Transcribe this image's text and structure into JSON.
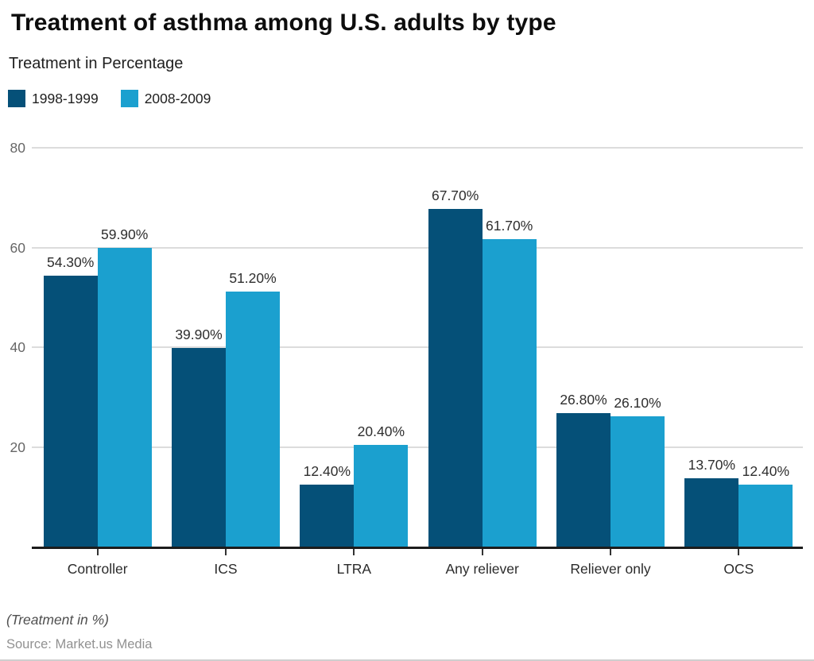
{
  "header": {
    "title": "Treatment of asthma among U.S. adults by type",
    "subtitle": "Treatment in Percentage"
  },
  "chart_data": {
    "type": "bar",
    "categories": [
      "Controller",
      "ICS",
      "LTRA",
      "Any reliever",
      "Reliever only",
      "OCS"
    ],
    "series": [
      {
        "name": "1998-1999",
        "color": "#055078",
        "values": [
          54.3,
          39.9,
          12.4,
          67.7,
          26.8,
          13.7
        ]
      },
      {
        "name": "2008-2009",
        "color": "#1ba0cf",
        "values": [
          59.9,
          51.2,
          20.4,
          61.7,
          26.1,
          12.4
        ]
      }
    ],
    "data_label_suffix": "%",
    "data_label_decimals": 2,
    "yticks": [
      20,
      40,
      60,
      80
    ],
    "ylim": [
      0,
      80
    ],
    "grid": true,
    "legend_position": "top-left",
    "xlabel": "",
    "ylabel": ""
  },
  "footer": {
    "note": "(Treatment in %)",
    "source": "Source: Market.us Media"
  }
}
